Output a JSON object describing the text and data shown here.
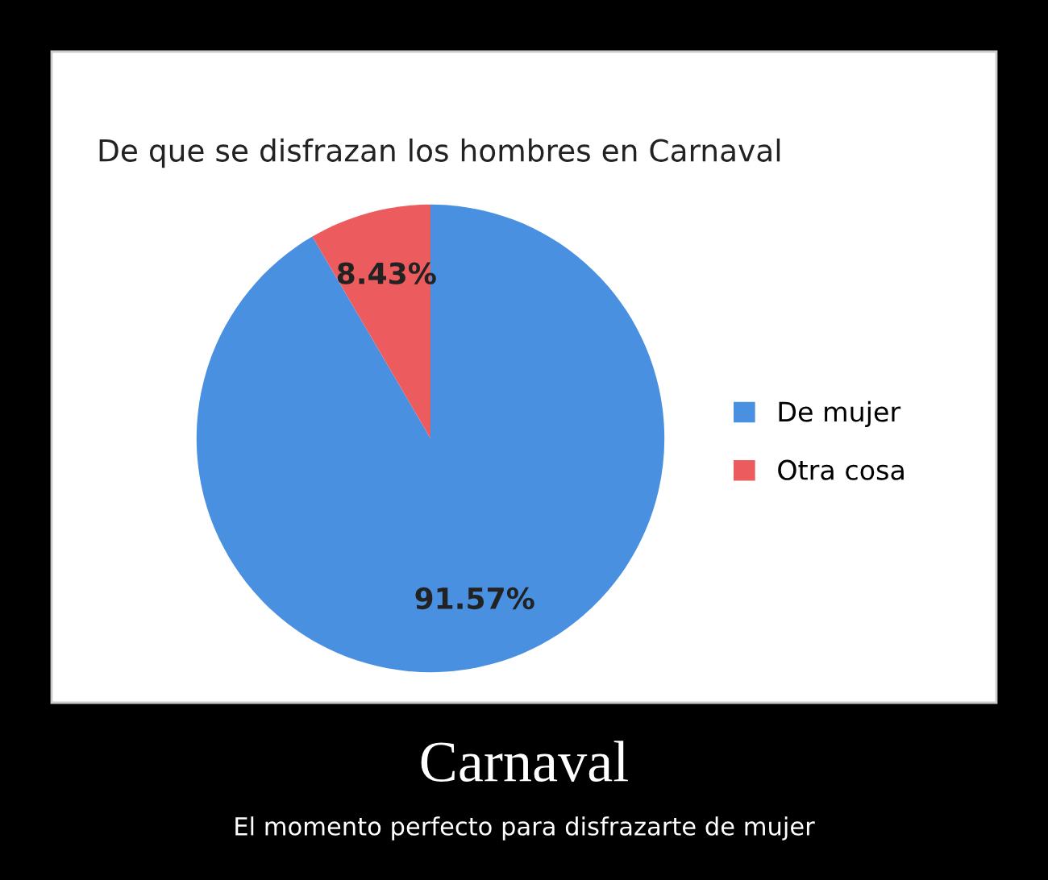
{
  "chart_data": {
    "type": "pie",
    "title": "De que se disfrazan los hombres en Carnaval",
    "categories": [
      "De mujer",
      "Otra cosa"
    ],
    "values": [
      91.57,
      8.43
    ],
    "colors": [
      "#4a90e0",
      "#ec5b5e"
    ],
    "value_labels": [
      "91.57%",
      "8.43%"
    ],
    "legend": "right",
    "annotations": [
      "Carnaval",
      "El momento perfecto para disfrazarte de mujer"
    ]
  }
}
